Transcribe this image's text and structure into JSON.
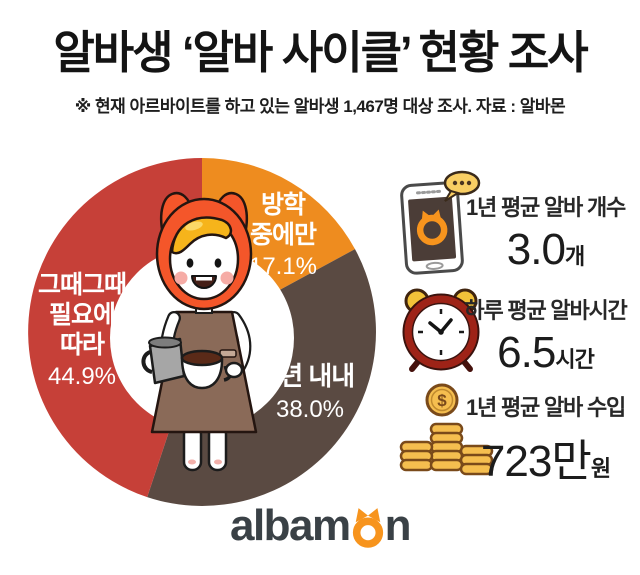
{
  "header": {
    "title": "알바생 ‘알바 사이클’ 현황 조사",
    "subtitle": "※ 현재 아르바이트를 하고 있는 알바생 1,467명 대상 조사. 자료 : 알바몬"
  },
  "chart_data": {
    "type": "pie",
    "donut": true,
    "title": "알바생 알바 사이클 현황",
    "categories": [
      "방학 중에만",
      "1년 내내",
      "그때그때 필요에 따라"
    ],
    "values": [
      17.1,
      38.0,
      44.9
    ],
    "unit": "%",
    "colors": [
      "#EE8C1F",
      "#5A4A42",
      "#C64038"
    ],
    "start_angle_deg": 0,
    "direction": "clockwise",
    "center_illustration": "albamon-barista-character",
    "label_color": "#ffffff"
  },
  "pie_labels": {
    "seg1_line1": "방학",
    "seg1_line2": "중에만",
    "seg1_pct": "17.1%",
    "seg2_line1": "1년 내내",
    "seg2_pct": "38.0%",
    "seg3_line1": "그때그때",
    "seg3_line2": "필요에",
    "seg3_line3": "따라",
    "seg3_pct": "44.9%"
  },
  "stats": [
    {
      "icon": "smartphone-chat-icon",
      "label": "1년 평균 알바 개수",
      "value": "3.0",
      "unit": "개"
    },
    {
      "icon": "alarm-clock-icon",
      "label": "하루 평균 알바시간",
      "value": "6.5",
      "unit": "시간"
    },
    {
      "icon": "coin-stacks-icon",
      "label": "1년 평균 알바 수입",
      "value": "723만",
      "unit": "원"
    }
  ],
  "footer": {
    "logo_left": "albam",
    "logo_right": "n",
    "logo_full": "albamon",
    "logo_text_color": "#3a4146",
    "logo_accent_color": "#F7941D"
  }
}
